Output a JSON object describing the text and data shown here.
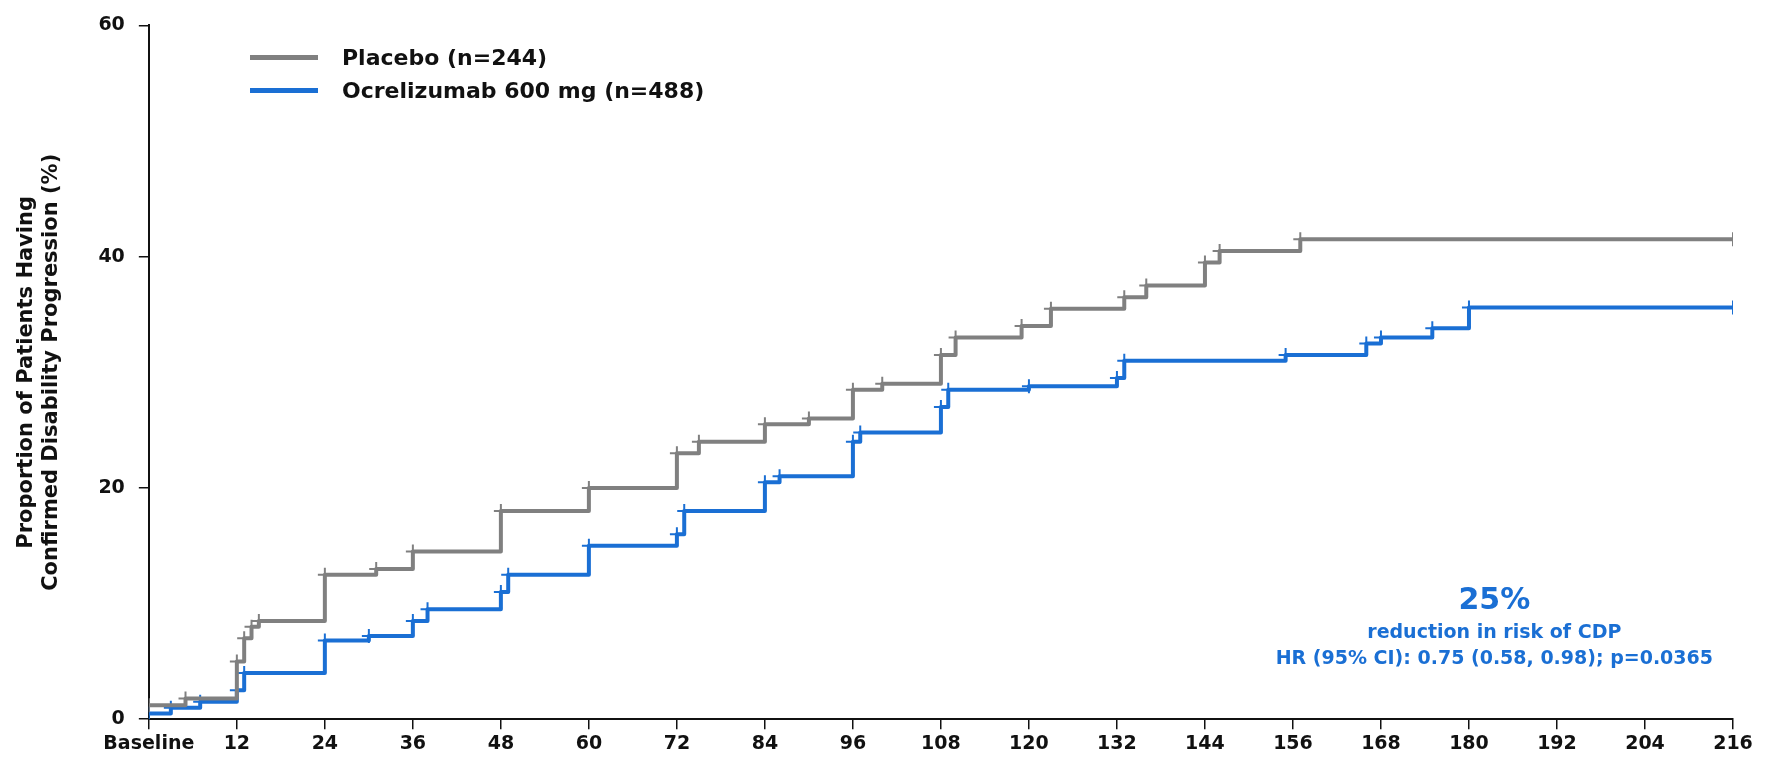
{
  "chart_data": {
    "type": "step",
    "ylabel": "Proportion of Patients Having\nConfirmed Disability Progression (%)",
    "xlim": [
      0,
      216
    ],
    "xticks": [
      {
        "value": 0,
        "label": "Baseline"
      },
      12,
      24,
      36,
      48,
      60,
      72,
      84,
      96,
      108,
      120,
      132,
      144,
      156,
      168,
      180,
      192,
      204,
      216
    ],
    "ylim": [
      0,
      60
    ],
    "yticks": [
      0,
      20,
      40,
      60
    ],
    "grid": false,
    "legend": "top left",
    "marker": "cross",
    "line_style": "solid",
    "series": [
      {
        "name": "Placebo (n=244)",
        "color": "#808080",
        "x": [
          0,
          5,
          12,
          13,
          14,
          15,
          24,
          31,
          36,
          48,
          60,
          72,
          75,
          84,
          90,
          96,
          100,
          108,
          110,
          119,
          123,
          133,
          136,
          144,
          146,
          157,
          216
        ],
        "values": [
          1.2,
          1.8,
          5,
          7,
          8,
          8.5,
          12.5,
          13,
          14.5,
          18,
          20,
          23,
          24,
          25.5,
          26,
          28.5,
          29,
          31.5,
          33,
          34,
          35.5,
          36.5,
          37.5,
          39.5,
          40.5,
          41.5,
          41.5
        ]
      },
      {
        "name": "Ocrelizumab 600 mg (n=488)",
        "color": "#1a6fd4",
        "x": [
          0,
          3,
          7,
          12,
          13,
          24,
          30,
          36,
          38,
          48,
          49,
          60,
          72,
          73,
          84,
          86,
          96,
          97,
          108,
          109,
          120,
          132,
          133,
          155,
          166,
          168,
          175,
          180,
          216
        ],
        "values": [
          0.5,
          1,
          1.5,
          2.5,
          4,
          6.8,
          7.2,
          8.5,
          9.5,
          11,
          12.5,
          15,
          16,
          18,
          20.5,
          21,
          24,
          24.8,
          27,
          28.5,
          28.8,
          29.5,
          31,
          31.5,
          32.5,
          33,
          33.8,
          35.6,
          35.6
        ]
      }
    ],
    "annotations": [
      "25%",
      "reduction in risk of CDP",
      "HR (95% CI): 0.75 (0.58, 0.98); p=0.0365"
    ]
  }
}
